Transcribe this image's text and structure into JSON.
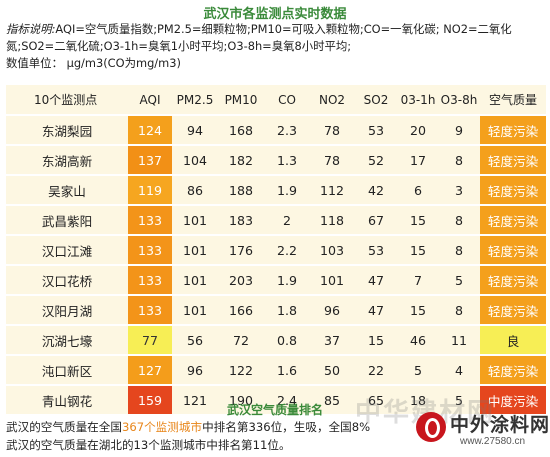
{
  "title": "武汉市各监测点实时数据",
  "explanation": {
    "label": "指标说明:",
    "line1": "AQI=空气质量指数;PM2.5=细颗粒物;PM10=可吸入颗粒物;CO=一氧化碳; NO2=二氧化",
    "line2": "氮;SO2=二氧化硫;O3-1h=臭氧1小时平均;O3-8h=臭氧8小时平均;",
    "line3": "数值单位：  μg/m3(CO为mg/m3)"
  },
  "table": {
    "headers": [
      "10个监测点",
      "AQI",
      "PM2.5",
      "PM10",
      "CO",
      "NO2",
      "SO2",
      "03-1h",
      "O3-8h",
      "空气质量"
    ],
    "rows": [
      {
        "site": "东湖梨园",
        "aqi": "124",
        "pm25": "94",
        "pm10": "168",
        "co": "2.3",
        "no2": "78",
        "so2": "53",
        "o31h": "20",
        "o38h": "9",
        "quality": "轻度污染",
        "aqi_color": "#f4a01c",
        "level": "light-pol"
      },
      {
        "site": "东湖高新",
        "aqi": "137",
        "pm25": "104",
        "pm10": "182",
        "co": "1.3",
        "no2": "78",
        "so2": "52",
        "o31h": "17",
        "o38h": "8",
        "quality": "轻度污染",
        "aqi_color": "#f29016",
        "level": "light-pol"
      },
      {
        "site": "吴家山",
        "aqi": "119",
        "pm25": "86",
        "pm10": "188",
        "co": "1.9",
        "no2": "112",
        "so2": "42",
        "o31h": "6",
        "o38h": "3",
        "quality": "轻度污染",
        "aqi_color": "#f6a620",
        "level": "light-pol"
      },
      {
        "site": "武昌紫阳",
        "aqi": "133",
        "pm25": "101",
        "pm10": "183",
        "co": "2",
        "no2": "118",
        "so2": "67",
        "o31h": "15",
        "o38h": "8",
        "quality": "轻度污染",
        "aqi_color": "#f39419",
        "level": "light-pol"
      },
      {
        "site": "汉口江滩",
        "aqi": "133",
        "pm25": "101",
        "pm10": "176",
        "co": "2.2",
        "no2": "103",
        "so2": "53",
        "o31h": "15",
        "o38h": "8",
        "quality": "轻度污染",
        "aqi_color": "#f39419",
        "level": "light-pol"
      },
      {
        "site": "汉口花桥",
        "aqi": "133",
        "pm25": "101",
        "pm10": "203",
        "co": "1.9",
        "no2": "101",
        "so2": "47",
        "o31h": "7",
        "o38h": "5",
        "quality": "轻度污染",
        "aqi_color": "#f39419",
        "level": "light-pol"
      },
      {
        "site": "汉阳月湖",
        "aqi": "133",
        "pm25": "101",
        "pm10": "166",
        "co": "1.8",
        "no2": "96",
        "so2": "47",
        "o31h": "15",
        "o38h": "8",
        "quality": "轻度污染",
        "aqi_color": "#f39419",
        "level": "light-pol"
      },
      {
        "site": "沉湖七壕",
        "aqi": "77",
        "pm25": "56",
        "pm10": "72",
        "co": "0.8",
        "no2": "37",
        "so2": "15",
        "o31h": "46",
        "o38h": "11",
        "quality": "良",
        "aqi_color": "#f7ee55",
        "level": "good"
      },
      {
        "site": "沌口新区",
        "aqi": "127",
        "pm25": "96",
        "pm10": "122",
        "co": "1.6",
        "no2": "50",
        "so2": "22",
        "o31h": "5",
        "o38h": "4",
        "quality": "轻度污染",
        "aqi_color": "#f49d1b",
        "level": "light-pol"
      },
      {
        "site": "青山钢花",
        "aqi": "159",
        "pm25": "121",
        "pm10": "190",
        "co": "2.4",
        "no2": "85",
        "so2": "65",
        "o31h": "18",
        "o38h": "5",
        "quality": "中度污染",
        "aqi_color": "#e5461e",
        "level": "mid-pol"
      }
    ]
  },
  "ranking": {
    "title": "武汉空气质量排名",
    "line1_pre": "武汉的空气质量在全国",
    "line1_hl": "367个监测城市",
    "line1_post": "中排名第336位，生吸，全国8%",
    "line2": "武汉的空气质量在湖北的13个监测城市中排名第11位。"
  },
  "logo": {
    "name": "中外涂料网",
    "url": "www.27580.cn",
    "watermark": "中华建材网"
  }
}
